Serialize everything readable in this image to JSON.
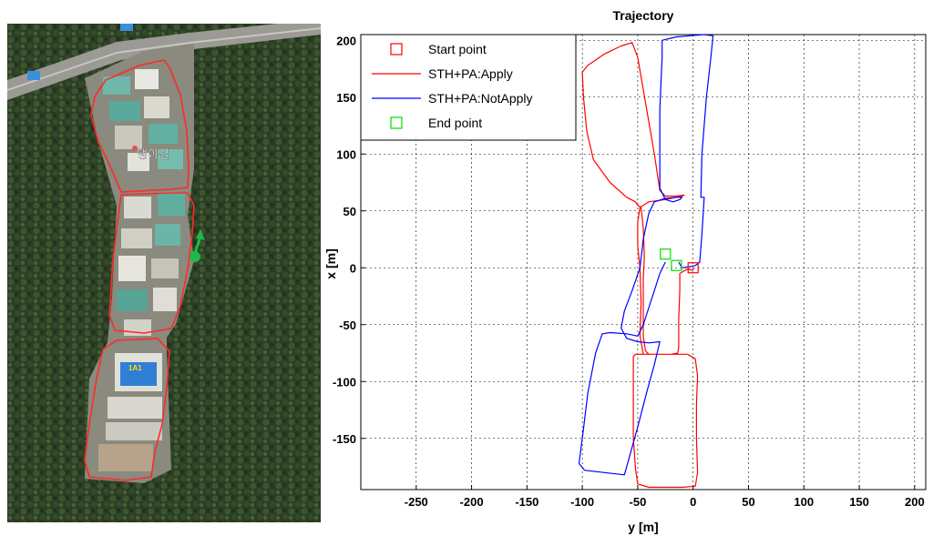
{
  "satellite_map": {
    "place_label": "댕이길",
    "building_label": "1A1",
    "colors": {
      "route": "#ff2a2a",
      "marker": "#1fb84a"
    }
  },
  "chart_data": {
    "type": "line",
    "title": "Trajectory",
    "xlabel": "y [m]",
    "ylabel": "x [m]",
    "xlim": [
      -300,
      210
    ],
    "ylim": [
      -195,
      205
    ],
    "xticks": [
      -250,
      -200,
      -150,
      -100,
      -50,
      0,
      50,
      100,
      150,
      200
    ],
    "yticks": [
      -150,
      -100,
      -50,
      0,
      50,
      100,
      150,
      200
    ],
    "grid": true,
    "legend_position": "top-left",
    "legend": [
      {
        "label": "Start point",
        "kind": "marker",
        "color": "#ff0000"
      },
      {
        "label": "STH+PA:Apply",
        "kind": "line",
        "color": "#ff0000"
      },
      {
        "label": "STH+PA:NotApply",
        "kind": "line",
        "color": "#0000ff"
      },
      {
        "label": "End point",
        "kind": "marker",
        "color": "#00dd00"
      }
    ],
    "start_point": {
      "y": 0,
      "x": 0
    },
    "end_points": [
      {
        "y": -25,
        "x": 12
      },
      {
        "y": -15,
        "x": 2
      }
    ],
    "series": [
      {
        "name": "STH+PA:Apply",
        "color": "#ff0000",
        "points": [
          [
            0,
            0
          ],
          [
            0,
            -2
          ],
          [
            -2,
            -2
          ],
          [
            -5,
            -1
          ],
          [
            -12,
            -5
          ],
          [
            -12,
            -20
          ],
          [
            -13,
            -45
          ],
          [
            -13,
            -70
          ],
          [
            -14,
            -75
          ],
          [
            -20,
            -76
          ],
          [
            -32,
            -76
          ],
          [
            -42,
            -76
          ],
          [
            -52,
            -76
          ],
          [
            -54,
            -78
          ],
          [
            -54,
            -95
          ],
          [
            -54,
            -120
          ],
          [
            -54,
            -150
          ],
          [
            -52,
            -177
          ],
          [
            -50,
            -190
          ],
          [
            -40,
            -193
          ],
          [
            -10,
            -193
          ],
          [
            2,
            -192
          ],
          [
            4,
            -180
          ],
          [
            3,
            -150
          ],
          [
            3,
            -120
          ],
          [
            4,
            -95
          ],
          [
            2,
            -80
          ],
          [
            -5,
            -76
          ],
          [
            -15,
            -76
          ],
          [
            -35,
            -76
          ],
          [
            -45,
            -76
          ],
          [
            -48,
            -60
          ],
          [
            -47,
            -30
          ],
          [
            -48,
            0
          ],
          [
            -50,
            20
          ],
          [
            -50,
            40
          ],
          [
            -48,
            53
          ],
          [
            -40,
            58
          ],
          [
            -25,
            60
          ],
          [
            -10,
            63
          ],
          [
            -8,
            64
          ],
          [
            -15,
            63
          ],
          [
            -25,
            63
          ],
          [
            -30,
            68
          ],
          [
            -35,
            100
          ],
          [
            -42,
            140
          ],
          [
            -50,
            185
          ],
          [
            -55,
            198
          ],
          [
            -65,
            195
          ],
          [
            -80,
            188
          ],
          [
            -95,
            178
          ],
          [
            -100,
            172
          ],
          [
            -99,
            150
          ],
          [
            -96,
            120
          ],
          [
            -90,
            95
          ],
          [
            -75,
            75
          ],
          [
            -60,
            62
          ],
          [
            -52,
            58
          ],
          [
            -50,
            55
          ],
          [
            -47,
            53
          ],
          [
            -45,
            35
          ],
          [
            -44,
            10
          ],
          [
            -45,
            -10
          ],
          [
            -45,
            -60
          ],
          [
            -43,
            -73
          ],
          [
            -40,
            -76
          ]
        ]
      },
      {
        "name": "STH+PA:NotApply",
        "color": "#0000ff",
        "points": [
          [
            -25,
            5
          ],
          [
            -30,
            -5
          ],
          [
            -35,
            -20
          ],
          [
            -40,
            -35
          ],
          [
            -45,
            -50
          ],
          [
            -50,
            -60
          ],
          [
            -60,
            -58
          ],
          [
            -75,
            -57
          ],
          [
            -82,
            -58
          ],
          [
            -88,
            -75
          ],
          [
            -95,
            -110
          ],
          [
            -100,
            -150
          ],
          [
            -103,
            -172
          ],
          [
            -98,
            -178
          ],
          [
            -80,
            -180
          ],
          [
            -62,
            -182
          ],
          [
            -58,
            -168
          ],
          [
            -50,
            -140
          ],
          [
            -42,
            -110
          ],
          [
            -35,
            -85
          ],
          [
            -30,
            -65
          ],
          [
            -40,
            -66
          ],
          [
            -50,
            -65
          ],
          [
            -60,
            -62
          ],
          [
            -65,
            -53
          ],
          [
            -62,
            -38
          ],
          [
            -55,
            -20
          ],
          [
            -48,
            0
          ],
          [
            -45,
            25
          ],
          [
            -40,
            48
          ],
          [
            -35,
            58
          ],
          [
            -25,
            61
          ],
          [
            -15,
            62
          ],
          [
            -10,
            62
          ],
          [
            -12,
            60
          ],
          [
            -18,
            58
          ],
          [
            -25,
            60
          ],
          [
            -30,
            70
          ],
          [
            -30,
            100
          ],
          [
            -30,
            140
          ],
          [
            -28,
            185
          ],
          [
            -28,
            200
          ],
          [
            -15,
            203
          ],
          [
            10,
            205
          ],
          [
            18,
            204
          ],
          [
            16,
            185
          ],
          [
            12,
            150
          ],
          [
            8,
            100
          ],
          [
            7,
            62
          ],
          [
            10,
            62
          ],
          [
            8,
            30
          ],
          [
            6,
            5
          ],
          [
            2,
            2
          ],
          [
            -10,
            0
          ],
          [
            -13,
            5
          ]
        ]
      }
    ]
  }
}
